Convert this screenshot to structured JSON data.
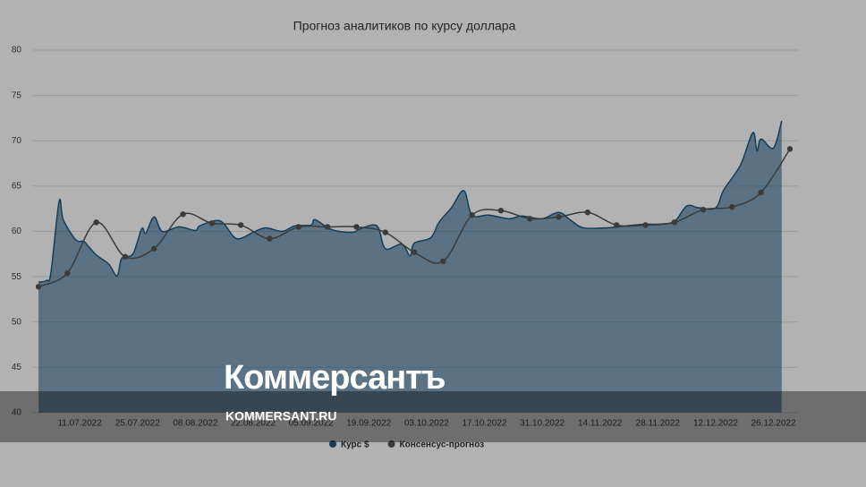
{
  "chart_data": {
    "type": "area",
    "title": "Прогноз аналитиков по курсу доллара",
    "xlim": [
      "01.07.2022",
      "30.12.2022"
    ],
    "xticks": [
      "11.07.2022",
      "25.07.2022",
      "08.08.2022",
      "22.08.2022",
      "05.09.2022",
      "19.09.2022",
      "03.10.2022",
      "17.10.2022",
      "31.10.2022",
      "14.11.2022",
      "28.11.2022",
      "12.12.2022",
      "26.12.2022"
    ],
    "ylim": [
      40,
      80
    ],
    "yticks": [
      40,
      45,
      50,
      55,
      60,
      65,
      70,
      75,
      80
    ],
    "grid": true,
    "legend": "bottom",
    "series": [
      {
        "name": "Курс $",
        "color": "#1a5a85",
        "style": "area",
        "x": [
          "01.07.2022",
          "03.07.2022",
          "04.07.2022",
          "06.07.2022",
          "07.07.2022",
          "10.07.2022",
          "12.07.2022",
          "13.07.2022",
          "15.07.2022",
          "18.07.2022",
          "20.07.2022",
          "21.07.2022",
          "22.07.2022",
          "24.07.2022",
          "26.07.2022",
          "27.07.2022",
          "29.07.2022",
          "31.07.2022",
          "04.08.2022",
          "08.08.2022",
          "09.08.2022",
          "13.08.2022",
          "15.08.2022",
          "18.08.2022",
          "22.08.2022",
          "25.08.2022",
          "29.08.2022",
          "01.09.2022",
          "05.09.2022",
          "06.09.2022",
          "10.09.2022",
          "15.09.2022",
          "17.09.2022",
          "21.09.2022",
          "23.09.2022",
          "27.09.2022",
          "29.09.2022",
          "30.09.2022",
          "04.10.2022",
          "06.10.2022",
          "09.10.2022",
          "12.10.2022",
          "14.10.2022",
          "18.10.2022",
          "23.10.2022",
          "26.10.2022",
          "31.10.2022",
          "04.11.2022",
          "07.11.2022",
          "10.11.2022",
          "16.11.2022",
          "20.11.2022",
          "25.11.2022",
          "28.11.2022",
          "02.12.2022",
          "05.12.2022",
          "08.12.2022",
          "12.12.2022",
          "14.12.2022",
          "18.12.2022",
          "21.12.2022",
          "22.12.2022",
          "23.12.2022",
          "26.12.2022",
          "28.12.2022"
        ],
        "values": [
          54.4,
          54.6,
          55.4,
          63.3,
          61.3,
          59.1,
          58.9,
          58.4,
          57.4,
          56.4,
          55.1,
          56.9,
          57.2,
          57.6,
          60.3,
          59.8,
          61.6,
          60.0,
          60.5,
          60.1,
          60.6,
          61.2,
          60.8,
          59.2,
          59.9,
          60.4,
          60.0,
          60.6,
          60.7,
          61.3,
          60.2,
          59.9,
          60.3,
          60.6,
          58.1,
          58.6,
          57.3,
          58.7,
          59.3,
          61.0,
          62.6,
          64.5,
          61.8,
          61.8,
          61.4,
          61.7,
          61.4,
          62.1,
          61.2,
          60.4,
          60.4,
          60.6,
          60.8,
          60.8,
          61.1,
          62.8,
          62.6,
          62.6,
          64.6,
          67.3,
          70.9,
          68.9,
          70.2,
          69.2,
          72.2
        ]
      },
      {
        "name": "Консенсус-прогноз",
        "color": "#555555",
        "style": "line-markers",
        "x": [
          "01.07.2022",
          "08.07.2022",
          "15.07.2022",
          "22.07.2022",
          "29.07.2022",
          "05.08.2022",
          "12.08.2022",
          "19.08.2022",
          "26.08.2022",
          "02.09.2022",
          "09.09.2022",
          "16.09.2022",
          "23.09.2022",
          "30.09.2022",
          "07.10.2022",
          "14.10.2022",
          "21.10.2022",
          "28.10.2022",
          "04.11.2022",
          "11.11.2022",
          "18.11.2022",
          "25.11.2022",
          "02.12.2022",
          "09.12.2022",
          "16.12.2022",
          "23.12.2022",
          "30.12.2022"
        ],
        "values": [
          53.9,
          55.4,
          61.0,
          57.2,
          58.1,
          61.9,
          60.9,
          60.7,
          59.2,
          60.5,
          60.5,
          60.5,
          59.9,
          57.7,
          56.7,
          61.8,
          62.3,
          61.4,
          61.6,
          62.1,
          60.7,
          60.7,
          61.0,
          62.4,
          62.7,
          64.3,
          69.1
        ]
      }
    ]
  },
  "watermark": {
    "logo": "Коммерсантъ",
    "site": "KOMMERSANT.RU"
  }
}
